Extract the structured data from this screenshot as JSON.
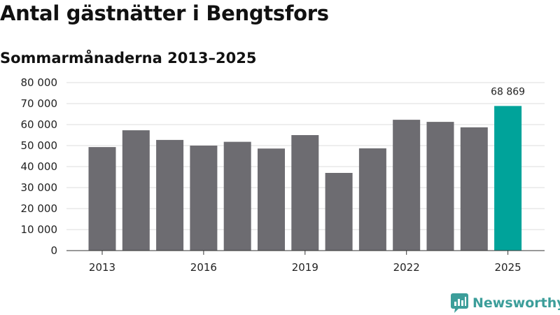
{
  "title": "Antal gästnätter i Bengtsfors",
  "subtitle": "Sommarmånaderna 2013–2025",
  "brand": "Newsworthy",
  "colors": {
    "bar": "#6d6c71",
    "highlight": "#00a39a",
    "brand": "#3c9e9a"
  },
  "chart_data": {
    "type": "bar",
    "title": "Antal gästnätter i Bengtsfors",
    "subtitle": "Sommarmånaderna 2013–2025",
    "categories": [
      "2013",
      "2014",
      "2015",
      "2016",
      "2017",
      "2018",
      "2019",
      "2020",
      "2021",
      "2022",
      "2023",
      "2024",
      "2025"
    ],
    "values": [
      49300,
      57300,
      52700,
      50000,
      51800,
      48600,
      55000,
      37000,
      48700,
      62300,
      61300,
      58700,
      68869
    ],
    "x_tick_labels": [
      "2013",
      "2016",
      "2019",
      "2022",
      "2025"
    ],
    "y_ticks": [
      0,
      10000,
      20000,
      30000,
      40000,
      50000,
      60000,
      70000,
      80000
    ],
    "y_tick_labels": [
      "0",
      "10 000",
      "20 000",
      "30 000",
      "40 000",
      "50 000",
      "60 000",
      "70 000",
      "80 000"
    ],
    "ylim": [
      0,
      80000
    ],
    "highlight_index": 12,
    "data_labels": [
      {
        "index": 12,
        "text": "68 869"
      }
    ],
    "grid": true,
    "legend": "none"
  }
}
